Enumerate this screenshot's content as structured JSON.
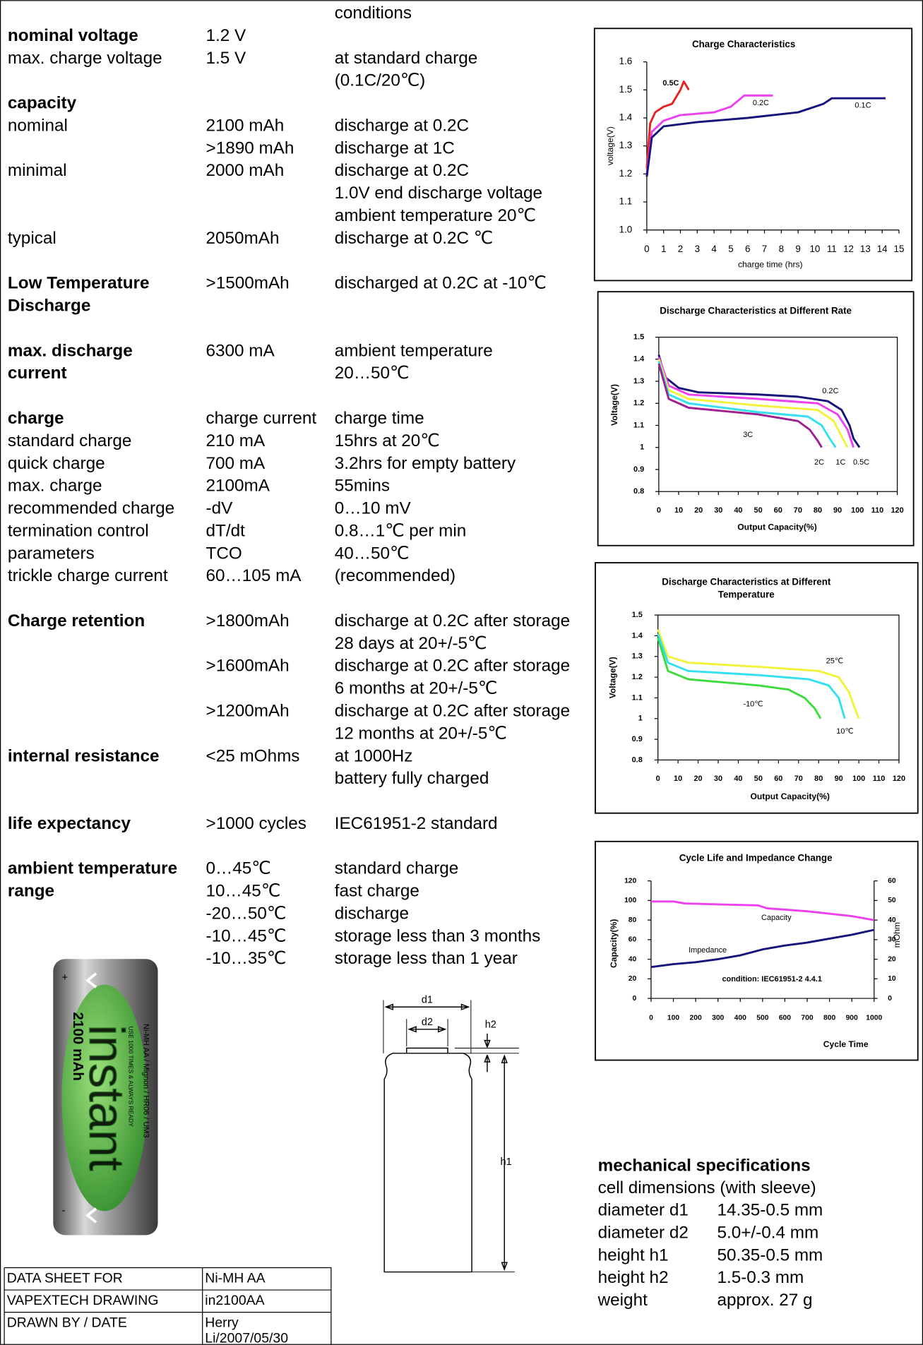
{
  "spec": {
    "header": "conditions",
    "sections": [
      [
        {
          "label": "nominal voltage",
          "bold": true,
          "value": "1.2 V"
        },
        {
          "label": "max. charge voltage",
          "value": "1.5 V",
          "condition": "at standard charge"
        },
        {
          "condition": "(0.1C/20℃)"
        },
        {
          "label": "capacity",
          "bold": true
        },
        {
          "label": "nominal",
          "value": "2100 mAh",
          "condition": "discharge at 0.2C"
        },
        {
          "value": ">1890 mAh",
          "condition": "discharge at 1C"
        },
        {
          "label": "minimal",
          "value": "2000 mAh",
          "condition": "discharge at 0.2C"
        },
        {
          "condition": "1.0V end discharge voltage"
        },
        {
          "condition": "ambient temperature 20℃"
        },
        {
          "label": "typical",
          "value": "2050mAh",
          "condition": "discharge at 0.2C ℃"
        }
      ],
      [
        {
          "label": "Low Temperature",
          "bold": true,
          "value": ">1500mAh",
          "condition": "discharged at 0.2C at -10℃"
        },
        {
          "label": "Discharge",
          "bold": true
        }
      ],
      [
        {
          "label": "max. discharge",
          "bold": true,
          "value": "6300 mA",
          "condition": "ambient temperature"
        },
        {
          "label": "current",
          "bold": true,
          "condition": "20…50℃"
        }
      ],
      [
        {
          "label": "charge",
          "bold": true,
          "value": "charge current",
          "condition": "charge time"
        },
        {
          "label": "standard charge",
          "value": "210 mA",
          "condition": "15hrs at  20℃"
        },
        {
          "label": "quick charge",
          "value": "700 mA",
          "condition": "3.2hrs for empty battery"
        },
        {
          "label": "max. charge",
          "value": "2100mA",
          "condition": "55mins"
        },
        {
          "label": "recommended charge",
          "value": "-dV",
          "condition": "0…10 mV"
        },
        {
          "label": "termination control",
          "value": "dT/dt",
          "condition": "0.8…1℃ per min"
        },
        {
          "label": "parameters",
          "value": "TCO",
          "condition": "40…50℃"
        },
        {
          "label": "trickle charge current",
          "value": "60…105 mA",
          "condition": "(recommended)"
        }
      ],
      [
        {
          "label": "Charge retention",
          "bold": true,
          "value": ">1800mAh",
          "condition": "discharge at 0.2C after storage"
        },
        {
          "condition": "28 days at 20+/-5℃"
        },
        {
          "value": ">1600mAh",
          "condition": "discharge at 0.2C after storage"
        },
        {
          "condition": "6 months at 20+/-5℃"
        },
        {
          "value": ">1200mAh",
          "condition": "discharge at 0.2C after storage"
        },
        {
          "condition": "12 months at 20+/-5℃"
        },
        {
          "label": "internal resistance",
          "bold": true,
          "value": "<25 mOhms",
          "condition": "at 1000Hz"
        },
        {
          "condition": "battery fully charged"
        }
      ],
      [
        {
          "label": "life expectancy",
          "bold": true,
          "value": ">1000 cycles",
          "condition": "IEC61951-2 standard"
        }
      ],
      [
        {
          "label": "ambient temperature",
          "bold": true,
          "value": "0…45℃",
          "condition": "standard charge"
        },
        {
          "label": "range",
          "bold": true,
          "value": "10…45℃",
          "condition": "fast charge"
        },
        {
          "value": "-20…50℃",
          "condition": "discharge"
        },
        {
          "value": "-10…45℃",
          "condition": "storage less than 3 months"
        },
        {
          "value": "-10…35℃",
          "condition": "storage less than 1 year"
        }
      ]
    ]
  },
  "chart_data": [
    {
      "type": "line",
      "title": [
        "Charge Characteristics"
      ],
      "xlabel": "charge time (hrs)",
      "ylabel": "voltage(V)",
      "xlim": [
        0,
        15
      ],
      "xticks": [
        0,
        1,
        2,
        3,
        4,
        5,
        6,
        7,
        8,
        9,
        10,
        11,
        12,
        13,
        14,
        15
      ],
      "ylim": [
        1.0,
        1.6
      ],
      "yticks": [
        {
          "value": 1.0,
          "label": "1.0"
        },
        1.1,
        1.2,
        1.3,
        1.4,
        1.5,
        1.6
      ],
      "series": [
        {
          "name": "0.5C",
          "color": "#e8221e",
          "x": [
            0,
            0.2,
            0.5,
            1,
            1.5,
            2,
            2.2,
            2.5
          ],
          "values": [
            1.22,
            1.38,
            1.42,
            1.44,
            1.45,
            1.5,
            1.53,
            1.5
          ]
        },
        {
          "name": "0.2C",
          "color": "#ee40ee",
          "x": [
            0,
            0.3,
            1,
            2,
            4,
            5,
            5.8,
            7.5
          ],
          "values": [
            1.2,
            1.35,
            1.39,
            1.41,
            1.42,
            1.44,
            1.48,
            1.48
          ]
        },
        {
          "name": "0.1C",
          "color": "#14147a",
          "x": [
            0,
            0.3,
            1,
            3,
            6,
            9,
            10.5,
            11,
            14.2
          ],
          "values": [
            1.19,
            1.33,
            1.37,
            1.385,
            1.4,
            1.42,
            1.45,
            1.47,
            1.47
          ]
        }
      ]
    },
    {
      "type": "line",
      "title": [
        "Discharge Characteristics at Different Rate"
      ],
      "xlabel": "Output Capacity(%)",
      "ylabel": "Voltage(V)",
      "xlim": [
        0,
        120
      ],
      "xticks": [
        0,
        10,
        20,
        30,
        40,
        50,
        60,
        70,
        80,
        90,
        100,
        110,
        120
      ],
      "ylim": [
        0.8,
        1.5
      ],
      "yticks": [
        0.8,
        0.9,
        1,
        1.1,
        1.2,
        1.3,
        1.4,
        1.5
      ],
      "series": [
        {
          "name": "0.2C",
          "color": "#14147a",
          "x": [
            0,
            3,
            10,
            20,
            50,
            70,
            85,
            92,
            96,
            98,
            101
          ],
          "values": [
            1.42,
            1.32,
            1.27,
            1.25,
            1.24,
            1.23,
            1.21,
            1.17,
            1.1,
            1.04,
            1.0
          ]
        },
        {
          "name": "0.5C",
          "color": "#ee40ee",
          "x": [
            0,
            5,
            15,
            50,
            80,
            90,
            95,
            98
          ],
          "values": [
            1.41,
            1.28,
            1.24,
            1.22,
            1.2,
            1.15,
            1.08,
            1.0
          ]
        },
        {
          "name": "1C",
          "color": "#f2f23a",
          "x": [
            0,
            5,
            15,
            50,
            80,
            88,
            92,
            95
          ],
          "values": [
            1.4,
            1.26,
            1.22,
            1.19,
            1.17,
            1.12,
            1.05,
            1.0
          ]
        },
        {
          "name": "2C",
          "color": "#33e0f0",
          "x": [
            0,
            5,
            15,
            50,
            75,
            82,
            86,
            89
          ],
          "values": [
            1.39,
            1.24,
            1.2,
            1.16,
            1.14,
            1.1,
            1.04,
            1.0
          ]
        },
        {
          "name": "3C",
          "color": "#a0208f",
          "x": [
            0,
            5,
            15,
            50,
            70,
            76,
            80,
            82
          ],
          "values": [
            1.38,
            1.22,
            1.18,
            1.15,
            1.12,
            1.08,
            1.03,
            1.0
          ]
        }
      ]
    },
    {
      "type": "line",
      "title": [
        "Discharge Characteristics at Different",
        "Temperature"
      ],
      "xlabel": "Output Capacity(%)",
      "ylabel": "Voltage(V)",
      "xlim": [
        0,
        120
      ],
      "xticks": [
        0,
        10,
        20,
        30,
        40,
        50,
        60,
        70,
        80,
        90,
        100,
        110,
        120
      ],
      "ylim": [
        0.8,
        1.5
      ],
      "yticks": [
        0.8,
        0.9,
        1,
        1.1,
        1.2,
        1.3,
        1.4,
        1.5
      ],
      "series": [
        {
          "name": "25℃",
          "color": "#f2f23a",
          "x": [
            0,
            5,
            15,
            50,
            80,
            90,
            95,
            98,
            100
          ],
          "values": [
            1.43,
            1.3,
            1.27,
            1.25,
            1.23,
            1.2,
            1.13,
            1.05,
            1.0
          ]
        },
        {
          "name": "-10℃",
          "color": "#3ddc3d",
          "x": [
            0,
            5,
            15,
            50,
            65,
            73,
            78,
            81
          ],
          "values": [
            1.39,
            1.23,
            1.19,
            1.16,
            1.14,
            1.1,
            1.05,
            1.0
          ]
        },
        {
          "name": "10℃",
          "color": "#33e0f0",
          "x": [
            0,
            5,
            15,
            50,
            75,
            85,
            90,
            93
          ],
          "values": [
            1.41,
            1.27,
            1.23,
            1.21,
            1.19,
            1.16,
            1.1,
            1.0
          ]
        }
      ]
    },
    {
      "type": "line",
      "title": [
        "Cycle Life and Impedance Change"
      ],
      "xlabel": "Cycle Time",
      "ylabel": "Capacity(%)",
      "y2label": "mOhm",
      "annotation": "condition: IEC61951-2  4.4.1",
      "xlim": [
        0,
        1000
      ],
      "xticks": [
        0,
        100,
        200,
        300,
        400,
        500,
        600,
        700,
        800,
        900,
        1000
      ],
      "ylim": [
        0,
        120
      ],
      "yticks": [
        0,
        20,
        40,
        60,
        80,
        100,
        120
      ],
      "y2lim": [
        0,
        60
      ],
      "y2ticks": [
        0,
        10,
        20,
        30,
        40,
        50,
        60
      ],
      "series": [
        {
          "name": "Capacity",
          "color": "#ee40ee",
          "x": [
            0,
            100,
            150,
            300,
            480,
            520,
            700,
            900,
            1000
          ],
          "values": [
            99,
            99,
            97,
            96,
            95,
            92,
            89,
            84,
            80
          ]
        },
        {
          "name": "Impedance",
          "color": "#14147a",
          "axis": "y2",
          "x": [
            0,
            100,
            200,
            300,
            400,
            500,
            600,
            700,
            800,
            900,
            1000
          ],
          "values": [
            16,
            17.5,
            18.5,
            20,
            22,
            25,
            27,
            28.5,
            30.5,
            32.5,
            35
          ]
        }
      ]
    }
  ],
  "battery": {
    "brand": "instant",
    "capacity": "2100 mAh",
    "type": "Ni-MH  AA / Mignon / HR06 / UM3",
    "slogan": "USE 1000 TIMES & ALWAYS READY",
    "plus": "+",
    "minus": "-"
  },
  "drawing": {
    "d1": "d1",
    "d2": "d2",
    "h2": "h2",
    "h1": "h1"
  },
  "mechanical": {
    "title": "mechanical specifications",
    "subtitle": "cell dimensions (with sleeve)",
    "rows": [
      [
        "diameter d1",
        "14.35-0.5 mm"
      ],
      [
        "diameter d2",
        "5.0+/-0.4 mm"
      ],
      [
        "height h1",
        "50.35-0.5 mm"
      ],
      [
        "height h2",
        "1.5-0.3 mm"
      ],
      [
        "weight",
        "approx. 27 g"
      ]
    ]
  },
  "title_block": {
    "rows": [
      [
        "DATA SHEET FOR",
        [
          "Ni-MH AA"
        ]
      ],
      [
        "VAPEXTECH DRAWING",
        [
          "in2100AA"
        ]
      ],
      [
        "DRAWN BY / DATE",
        [
          "Herry",
          "Li/2007/05/30"
        ]
      ]
    ]
  }
}
